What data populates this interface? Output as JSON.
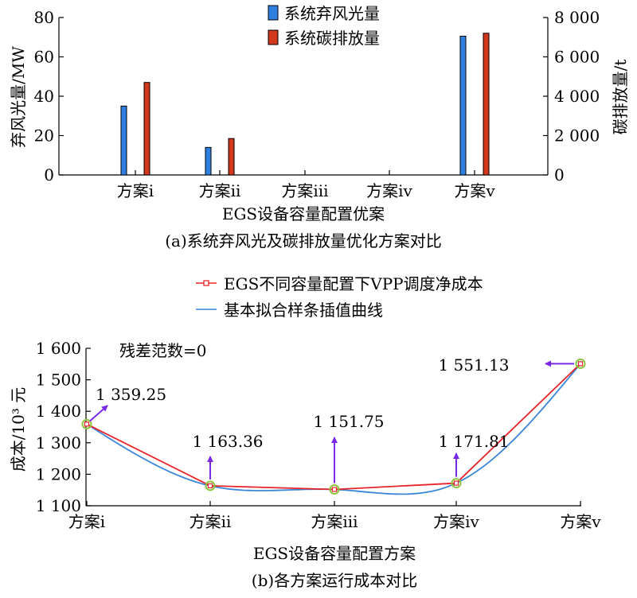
{
  "chart_data": [
    {
      "type": "bar",
      "categories": [
        "方案i",
        "方案ii",
        "方案iii",
        "方案iv",
        "方案v"
      ],
      "series": [
        {
          "name": "系统弃风光量",
          "axis": "left",
          "color": "#2f7fe0",
          "values": [
            35,
            14,
            0,
            0,
            70.5
          ]
        },
        {
          "name": "系统碳排放量",
          "axis": "right",
          "color": "#d2391c",
          "values": [
            4700,
            1850,
            0,
            0,
            7200
          ]
        }
      ],
      "title": "",
      "xlabel": "EGS设备容量配置优案",
      "ylabel": "弃风光量/MW",
      "y2label": "碳排放量/t",
      "ylim": [
        0,
        80
      ],
      "yticks": [
        0,
        20,
        40,
        60,
        80
      ],
      "y2lim": [
        0,
        8000
      ],
      "y2ticks": [
        {
          "value": 0,
          "label": "0"
        },
        {
          "value": 2000,
          "label": "2 000"
        },
        {
          "value": 4000,
          "label": "4 000"
        },
        {
          "value": 6000,
          "label": "6 000"
        },
        {
          "value": 8000,
          "label": "8 000"
        }
      ],
      "caption": "(a)系统弃风光及碳排放量优化方案对比",
      "legend_position": "top-center",
      "grid": false
    },
    {
      "type": "line",
      "categories": [
        "方案i",
        "方案ii",
        "方案iii",
        "方案iv",
        "方案v"
      ],
      "series": [
        {
          "name": "EGS不同容量配置下VPP调度净成本",
          "color": "#e8232a",
          "marker": "square",
          "values": [
            1359.25,
            1163.36,
            1151.75,
            1171.81,
            1551.13
          ]
        },
        {
          "name": "基本拟合样条插值曲线",
          "color": "#3a86d9",
          "style": "spline",
          "values": [
            1359.25,
            1163.36,
            1151.75,
            1171.81,
            1551.13
          ]
        }
      ],
      "point_labels": [
        "1 359.25",
        "1 163.36",
        "1 151.75",
        "1 171.81",
        "1 551.13"
      ],
      "annotation": "残差范数=0",
      "highlight_marker_color": "#8cc63f",
      "arrow_color": "#7a29e6",
      "title": "",
      "xlabel": "EGS设备容量配置方案",
      "ylabel": "成本/10³ 元",
      "ylim": [
        1100,
        1600
      ],
      "yticks": [
        {
          "value": 1100,
          "label": "1 100"
        },
        {
          "value": 1200,
          "label": "1 200"
        },
        {
          "value": 1300,
          "label": "1 300"
        },
        {
          "value": 1400,
          "label": "1 400"
        },
        {
          "value": 1500,
          "label": "1 500"
        },
        {
          "value": 1600,
          "label": "1 600"
        }
      ],
      "caption": "(b)各方案运行成本对比",
      "legend_position": "top-center",
      "grid": false
    }
  ]
}
